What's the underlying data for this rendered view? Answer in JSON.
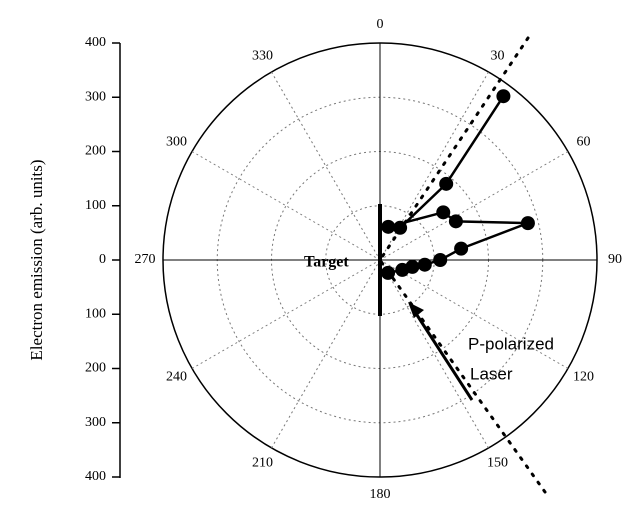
{
  "chart_data": {
    "type": "polar",
    "ylabel": "Electron emission (arb. units)",
    "ylim": [
      -400,
      400
    ],
    "yticks": [
      {
        "value": -400,
        "label": "400"
      },
      {
        "value": -300,
        "label": "300"
      },
      {
        "value": -200,
        "label": "200"
      },
      {
        "value": -100,
        "label": "100"
      },
      0,
      100,
      200,
      300,
      400
    ],
    "rlim": [
      0,
      400
    ],
    "rticks": [
      100,
      200,
      300,
      400
    ],
    "thetaticks": [
      0,
      30,
      60,
      90,
      120,
      150,
      180,
      210,
      240,
      270,
      300,
      330
    ],
    "series": [
      {
        "color": "#000000",
        "theta": [
          37,
          41,
          32,
          14,
          53,
          63,
          76,
          82,
          90,
          96,
          102,
          114,
          148
        ],
        "r": [
          378,
          186,
          70,
          63,
          146,
          157,
          281,
          151,
          111,
          83,
          61,
          45,
          28
        ]
      }
    ],
    "annotations": [
      "Target",
      "P-polarized",
      "Laser"
    ]
  }
}
